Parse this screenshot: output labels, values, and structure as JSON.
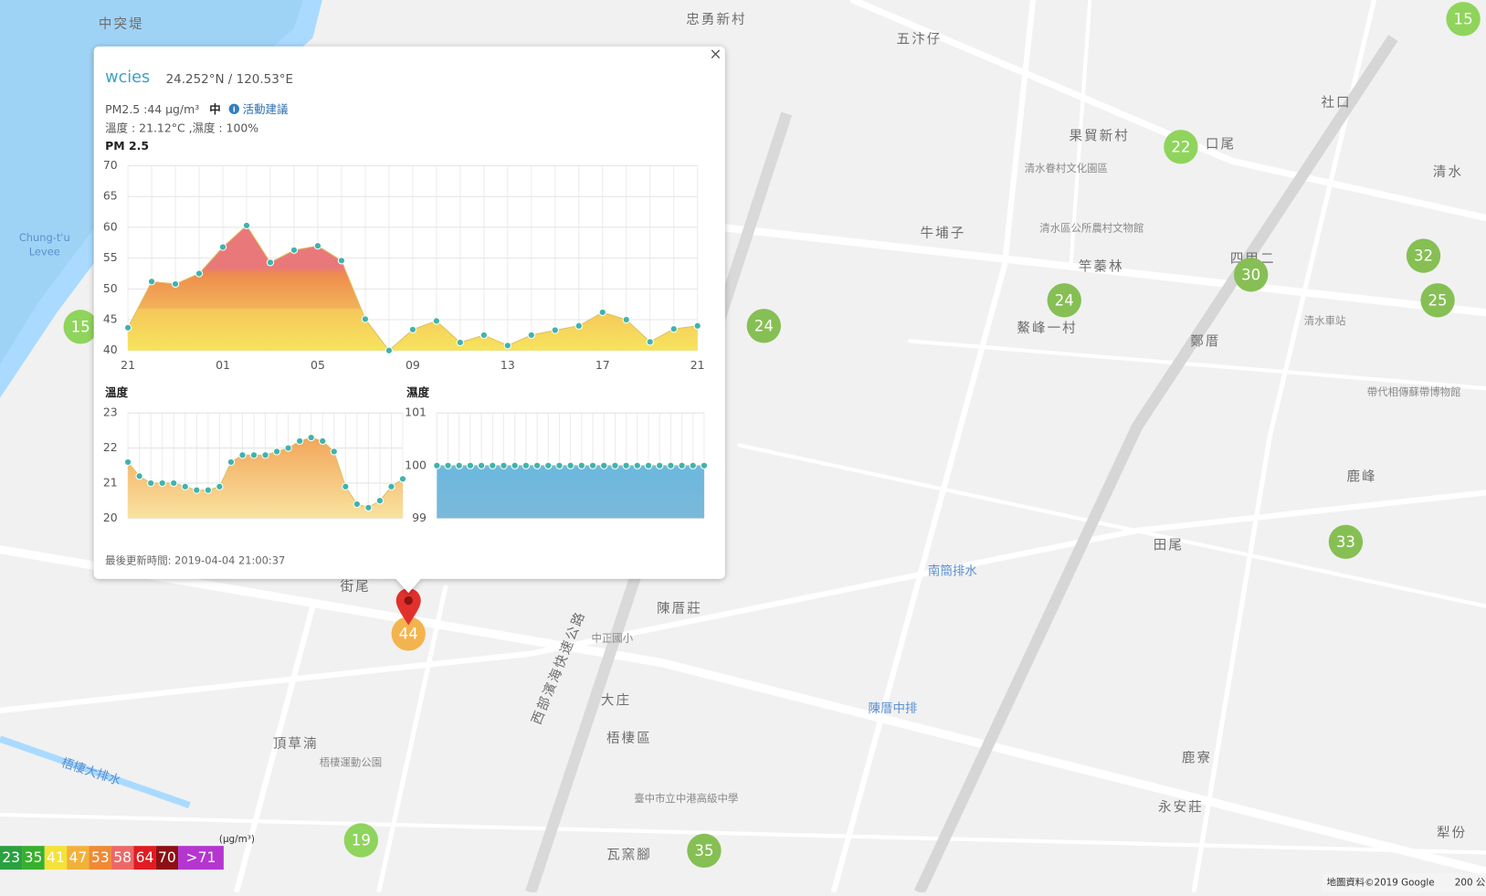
{
  "map": {
    "labels": [
      "中突堤",
      "忠勇新村",
      "五汴仔",
      "果貿新村",
      "口尾",
      "社口",
      "清水",
      "清水眷村文化園區",
      "清水區公所農村文物館",
      "牛埔子",
      "竿蓁林",
      "四甲二",
      "鰲峰一村",
      "鄭厝",
      "清水車站",
      "帶代相傳蘇帶博物館",
      "鹿峰",
      "田尾",
      "南簡排水",
      "陳厝莊",
      "陳厝中排",
      "大庄",
      "梧棲區",
      "頂草湳",
      "梧棲運動公園",
      "瓦窯腳",
      "鹿寮",
      "永安莊",
      "犁份",
      "臺中市立中港高級中學",
      "街尾",
      "Chung-t'u",
      "Levee",
      "梧棲大排水",
      "西部濱海快速公路",
      "中正國小"
    ],
    "markers": [
      {
        "value": 15,
        "color": "#8fd45c"
      },
      {
        "value": 22,
        "color": "#8fd45c"
      },
      {
        "value": 32,
        "color": "#86bf54"
      },
      {
        "value": 30,
        "color": "#86bf54"
      },
      {
        "value": 25,
        "color": "#86bf54"
      },
      {
        "value": 24,
        "color": "#86bf54"
      },
      {
        "value": 24,
        "color": "#86bf54"
      },
      {
        "value": 15,
        "color": "#8fd45c"
      },
      {
        "value": 33,
        "color": "#86bf54"
      },
      {
        "value": 19,
        "color": "#8fd45c"
      },
      {
        "value": 35,
        "color": "#86bf54"
      },
      {
        "value": 44,
        "color": "#f2b44e"
      }
    ],
    "attribution": "地圖資料©2019 Google",
    "scale": "200 公"
  },
  "legend": {
    "unit": "(μg/m³)",
    "items": [
      {
        "label": "23",
        "color": "#2aa040"
      },
      {
        "label": "35",
        "color": "#37b02c"
      },
      {
        "label": "41",
        "color": "#f4e23a"
      },
      {
        "label": "47",
        "color": "#f2b13a"
      },
      {
        "label": "53",
        "color": "#ef8a36"
      },
      {
        "label": "58",
        "color": "#ec6868"
      },
      {
        "label": "64",
        "color": "#e01b22"
      },
      {
        "label": "70",
        "color": "#8c1014"
      },
      {
        "label": ">71",
        "color": "#b535d0"
      }
    ]
  },
  "popup": {
    "close": "×",
    "station": "wcies",
    "coords": "24.252°N / 120.53°E",
    "pm_text": "PM2.5 :44 μg/m³",
    "level": "中",
    "advice": "活動建議",
    "weather": "溫度 : 21.12°C ,濕度 : 100%",
    "updated": "最後更新時間: 2019-04-04 21:00:37"
  },
  "chart_data": [
    {
      "type": "area",
      "title": "PM 2.5",
      "color": "#3fb3ad",
      "categories": [
        "21",
        null,
        null,
        null,
        "01",
        null,
        null,
        null,
        "05",
        null,
        null,
        null,
        "09",
        null,
        null,
        null,
        "13",
        null,
        null,
        null,
        "17",
        null,
        null,
        null,
        "21"
      ],
      "values": [
        43.7,
        51.2,
        50.8,
        52.5,
        56.8,
        60.3,
        54.3,
        56.3,
        57,
        54.6,
        45.1,
        40,
        43.4,
        44.8,
        41.3,
        42.5,
        40.8,
        42.5,
        43.3,
        44,
        46.2,
        45,
        41.4,
        43.5,
        44
      ],
      "ylim": [
        40,
        70
      ],
      "yticks": [
        40,
        45,
        50,
        55,
        60,
        65,
        70
      ],
      "grid": true
    },
    {
      "type": "area",
      "title": "溫度",
      "color": "#3fb3ad",
      "values": [
        21.6,
        21.2,
        21.0,
        21.0,
        21.0,
        20.9,
        20.8,
        20.8,
        20.9,
        21.6,
        21.8,
        21.8,
        21.8,
        21.9,
        22.0,
        22.2,
        22.3,
        22.2,
        21.9,
        20.9,
        20.4,
        20.3,
        20.5,
        20.9,
        21.12
      ],
      "ylim": [
        20,
        23
      ],
      "yticks": [
        20,
        21,
        22,
        23
      ],
      "grid": true
    },
    {
      "type": "area",
      "title": "濕度",
      "color": "#3fb3ad",
      "values": [
        100,
        100,
        100,
        100,
        100,
        100,
        100,
        100,
        100,
        100,
        100,
        100,
        100,
        100,
        100,
        100,
        100,
        100,
        100,
        100,
        100,
        100,
        100,
        100,
        100
      ],
      "ylim": [
        99,
        101
      ],
      "yticks": [
        99,
        100,
        101
      ],
      "grid": true
    }
  ]
}
